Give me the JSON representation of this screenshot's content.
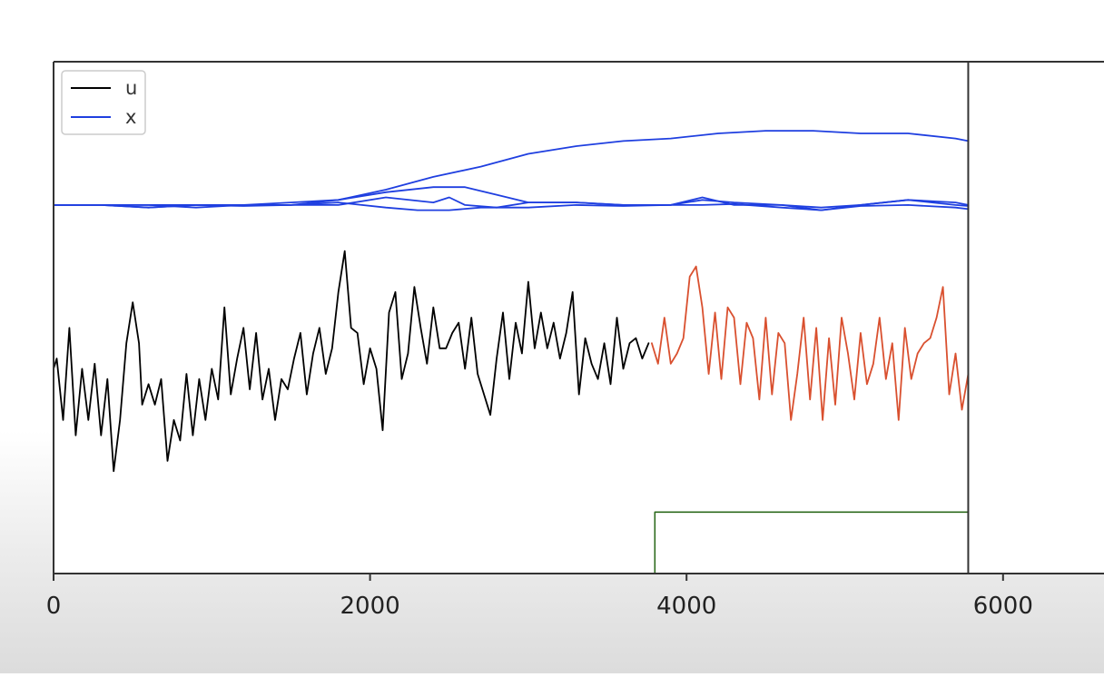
{
  "chart_data": {
    "type": "line",
    "title": "",
    "xlabel": "",
    "ylabel": "",
    "xlim": [
      0,
      6000
    ],
    "ylim": [
      0,
      100
    ],
    "xticks": [
      0,
      2000,
      4000,
      6000
    ],
    "grid": false,
    "legend": {
      "position": "top-left",
      "entries": [
        {
          "label": "u",
          "color": "#000000"
        },
        {
          "label": "x",
          "color": "#1f3fe0"
        }
      ]
    },
    "cursor_x": 5780,
    "colors": {
      "u": "#000000",
      "u_overlay": "#d9502f",
      "x": "#1f3fe0",
      "step": "#2e6b1e"
    },
    "series": [
      {
        "name": "u",
        "color": "#000000",
        "x": [
          0,
          20,
          60,
          100,
          140,
          180,
          220,
          260,
          300,
          340,
          380,
          420,
          460,
          500,
          540,
          560,
          600,
          640,
          680,
          720,
          760,
          800,
          840,
          880,
          920,
          960,
          1000,
          1040,
          1080,
          1120,
          1160,
          1200,
          1240,
          1280,
          1320,
          1360,
          1400,
          1440,
          1480,
          1520,
          1560,
          1600,
          1640,
          1680,
          1720,
          1760,
          1800,
          1840,
          1880,
          1920,
          1960,
          2000,
          2040,
          2080,
          2120,
          2160,
          2200,
          2240,
          2280,
          2320,
          2360,
          2400,
          2440,
          2480,
          2520,
          2560,
          2600,
          2640,
          2680,
          2720,
          2760,
          2800,
          2840,
          2880,
          2920,
          2960,
          3000,
          3040,
          3080,
          3120,
          3160,
          3200,
          3240,
          3280,
          3320,
          3360,
          3400,
          3440,
          3480,
          3520,
          3560,
          3600,
          3640,
          3680,
          3720,
          3760
        ],
        "y": [
          40,
          42,
          30,
          48,
          27,
          40,
          30,
          41,
          27,
          38,
          20,
          30,
          45,
          53,
          45,
          33,
          37,
          33,
          38,
          22,
          30,
          26,
          39,
          27,
          38,
          30,
          40,
          34,
          52,
          35,
          42,
          48,
          36,
          47,
          34,
          40,
          30,
          38,
          36,
          42,
          47,
          35,
          43,
          48,
          39,
          44,
          55,
          63,
          48,
          47,
          37,
          44,
          40,
          28,
          51,
          55,
          38,
          43,
          56,
          48,
          41,
          52,
          44,
          44,
          47,
          49,
          40,
          50,
          39,
          35,
          31,
          42,
          51,
          38,
          49,
          43,
          57,
          44,
          51,
          44,
          49,
          42,
          47,
          55,
          35,
          46,
          41,
          38,
          45,
          37,
          50,
          40,
          45,
          46,
          42,
          45
        ]
      },
      {
        "name": "",
        "color": "#d9502f",
        "x": [
          3780,
          3820,
          3860,
          3900,
          3940,
          3980,
          4020,
          4060,
          4100,
          4140,
          4180,
          4220,
          4260,
          4300,
          4340,
          4380,
          4420,
          4460,
          4500,
          4540,
          4580,
          4620,
          4660,
          4700,
          4740,
          4780,
          4820,
          4860,
          4900,
          4940,
          4980,
          5020,
          5060,
          5100,
          5140,
          5180,
          5220,
          5260,
          5300,
          5340,
          5380,
          5420,
          5460,
          5500,
          5540,
          5580,
          5620,
          5660,
          5700,
          5740,
          5780
        ],
        "y": [
          45,
          41,
          50,
          41,
          43,
          46,
          58,
          60,
          52,
          39,
          51,
          38,
          52,
          50,
          37,
          49,
          46,
          34,
          50,
          35,
          47,
          45,
          30,
          39,
          50,
          34,
          48,
          30,
          46,
          33,
          50,
          43,
          34,
          47,
          37,
          41,
          50,
          38,
          45,
          30,
          48,
          38,
          43,
          45,
          46,
          50,
          56,
          35,
          43,
          32,
          39
        ]
      },
      {
        "name": "x",
        "color": "#1f3fe0",
        "x": [
          0,
          300,
          600,
          900,
          1200,
          1500,
          1800,
          2100,
          2400,
          2700,
          3000,
          3300,
          3600,
          3900,
          4200,
          4500,
          4800,
          5100,
          5400,
          5700,
          5780
        ],
        "y": [
          72,
          72,
          72,
          72,
          72,
          72.5,
          73,
          75,
          77.5,
          79.5,
          82,
          83.5,
          84.5,
          85,
          86,
          86.5,
          86.5,
          86,
          86,
          85,
          84.5
        ]
      },
      {
        "name": "",
        "color": "#1f3fe0",
        "x": [
          0,
          300,
          600,
          900,
          1200,
          1500,
          1800,
          2100,
          2400,
          2600,
          2800,
          3000,
          3300,
          3600,
          3900,
          4100,
          4300,
          4600,
          4850,
          5100,
          5400,
          5700,
          5780
        ],
        "y": [
          72,
          72,
          71.5,
          72,
          72,
          72,
          73,
          74.5,
          75.5,
          75.5,
          74,
          72.5,
          72.5,
          72,
          72,
          73,
          72.5,
          72,
          71,
          72,
          73,
          72,
          71.8
        ]
      },
      {
        "name": "",
        "color": "#1f3fe0",
        "x": [
          0,
          300,
          600,
          900,
          1200,
          1500,
          1800,
          2100,
          2400,
          2500,
          2600,
          2800,
          3000,
          3300,
          3600,
          3900,
          4100,
          4300,
          4600,
          4850,
          5100,
          5400,
          5700,
          5780
        ],
        "y": [
          72,
          72,
          72,
          71.5,
          72,
          72,
          72,
          73.5,
          72.5,
          73.5,
          72,
          71.5,
          72.5,
          72.5,
          72,
          72,
          73.5,
          72,
          72,
          71.5,
          72,
          73,
          72.5,
          72
        ]
      },
      {
        "name": "",
        "color": "#1f3fe0",
        "x": [
          0,
          300,
          600,
          900,
          1200,
          1500,
          1800,
          2100,
          2300,
          2500,
          2700,
          3000,
          3300,
          3600,
          3900,
          4100,
          4300,
          4600,
          4850,
          5100,
          5400,
          5700,
          5780
        ],
        "y": [
          72,
          72,
          71.5,
          72,
          71.8,
          72,
          72.5,
          71.5,
          71,
          71,
          71.5,
          71.5,
          72,
          71.8,
          72,
          72,
          72.2,
          71.5,
          71,
          71.8,
          72,
          71.5,
          71.2
        ]
      },
      {
        "name": "",
        "color": "#2e6b1e",
        "x": [
          3800,
          3800,
          5780
        ],
        "y": [
          0,
          12,
          12
        ]
      }
    ]
  }
}
